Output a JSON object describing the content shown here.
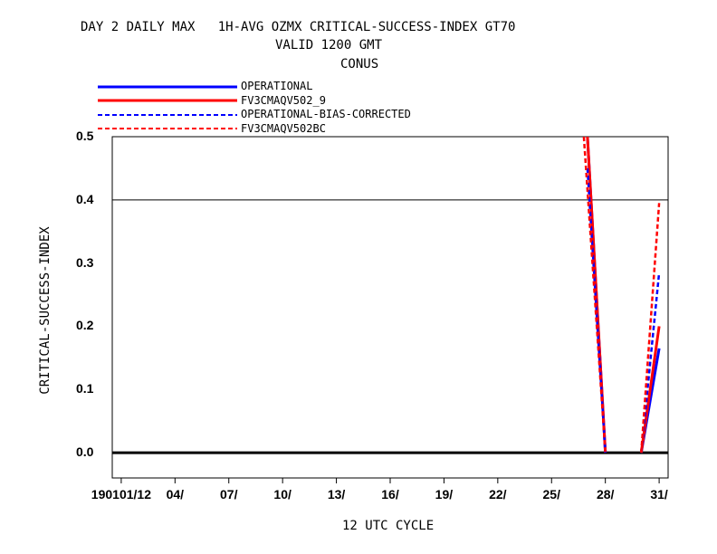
{
  "chart_data": {
    "type": "line",
    "title": "DAY 2 DAILY MAX   1H-AVG OZMX CRITICAL-SUCCESS-INDEX GT70",
    "subtitle_lines": [
      "VALID 1200 GMT",
      "CONUS"
    ],
    "xlabel": "12 UTC CYCLE",
    "ylabel": "CRITICAL-SUCCESS-INDEX",
    "x_ticks": [
      {
        "x": 1,
        "label": "190101/12"
      },
      {
        "x": 4,
        "label": "04/"
      },
      {
        "x": 7,
        "label": "07/"
      },
      {
        "x": 10,
        "label": "10/"
      },
      {
        "x": 13,
        "label": "13/"
      },
      {
        "x": 16,
        "label": "16/"
      },
      {
        "x": 19,
        "label": "19/"
      },
      {
        "x": 22,
        "label": "22/"
      },
      {
        "x": 25,
        "label": "25/"
      },
      {
        "x": 28,
        "label": "28/"
      },
      {
        "x": 31,
        "label": "31/"
      }
    ],
    "y_ticks": [
      "0.0",
      "0.1",
      "0.2",
      "0.3",
      "0.4",
      "0.5"
    ],
    "xlim": [
      0.5,
      31.5
    ],
    "ylim": [
      -0.04,
      0.5
    ],
    "reference_lines": [
      0.0,
      0.4
    ],
    "legend_position": "top-left",
    "series": [
      {
        "name": "OPERATIONAL",
        "color": "#0000ff",
        "dash": "solid",
        "segments": [
          [
            [
              27,
              0.5
            ],
            [
              28,
              0.0
            ]
          ],
          [
            [
              30,
              0.0
            ],
            [
              31,
              0.165
            ]
          ]
        ]
      },
      {
        "name": "FV3CMAQV502_9",
        "color": "#ff0000",
        "dash": "solid",
        "segments": [
          [
            [
              27,
              0.5
            ],
            [
              28,
              0.0
            ]
          ],
          [
            [
              30,
              0.0
            ],
            [
              31,
              0.2
            ]
          ]
        ]
      },
      {
        "name": "OPERATIONAL-BIAS-CORRECTED",
        "color": "#0000ff",
        "dash": "dashed",
        "segments": [
          [
            [
              27,
              0.45
            ],
            [
              28,
              0.0
            ]
          ],
          [
            [
              30,
              0.0
            ],
            [
              31,
              0.285
            ]
          ]
        ]
      },
      {
        "name": "FV3CMAQV502BC",
        "color": "#ff0000",
        "dash": "dashed",
        "segments": [
          [
            [
              26.8,
              0.5
            ],
            [
              28,
              0.0
            ]
          ],
          [
            [
              30,
              0.0
            ],
            [
              31,
              0.395
            ]
          ]
        ]
      }
    ]
  }
}
